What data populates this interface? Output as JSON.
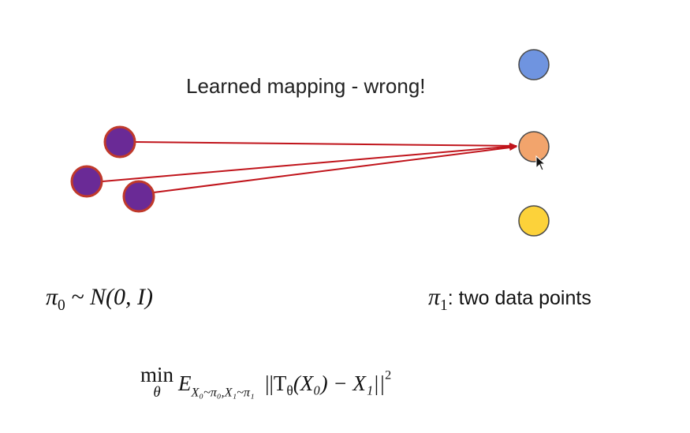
{
  "title": "Learned mapping - wrong!",
  "source_label": {
    "symbol": "π",
    "sub": "0",
    "rest": " ~ N(0, I)"
  },
  "target_label": {
    "symbol": "π",
    "sub": "1",
    "text": ": two data points"
  },
  "objective": {
    "min": "min",
    "theta": "θ",
    "expectation": "E",
    "e_subscript": "X₀~π₀,X₁~π₁",
    "body": "||T",
    "theta2": "θ",
    "arg": "(X₀) − X₁||",
    "power": "2"
  },
  "colors": {
    "source_fill": "#6a2a96",
    "source_stroke": "#c0392b",
    "arrow": "#c0141b",
    "target_blue": "#6f94e0",
    "target_orange": "#f2a46c",
    "target_yellow": "#fcd23a"
  },
  "icons": [
    "arrow-cursor-icon"
  ]
}
